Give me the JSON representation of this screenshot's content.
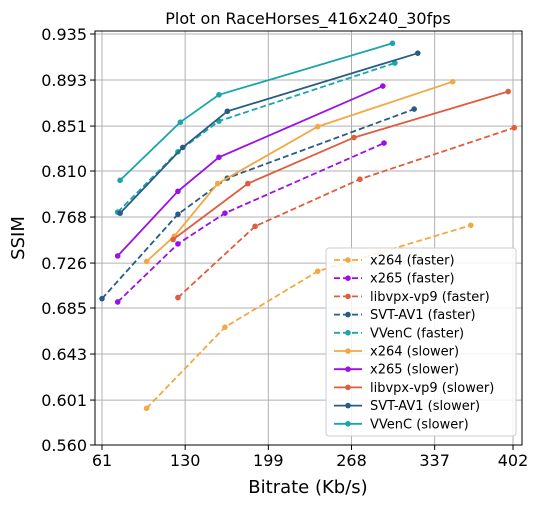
{
  "chart_data": {
    "type": "line",
    "title": "Plot on RaceHorses_416x240_30fps",
    "xlabel": "Bitrate (Kb/s)",
    "ylabel": "SSIM",
    "xlim": [
      56,
      408
    ],
    "ylim": [
      0.56,
      0.94
    ],
    "xticks": [
      61,
      130,
      199,
      268,
      337,
      402
    ],
    "xtick_labels": [
      "61",
      "130",
      "199",
      "268",
      "337",
      "402"
    ],
    "yticks": [
      0.56,
      0.601,
      0.643,
      0.685,
      0.726,
      0.768,
      0.81,
      0.851,
      0.893,
      0.935
    ],
    "ytick_labels": [
      "0.560",
      "0.601",
      "0.643",
      "0.685",
      "0.726",
      "0.768",
      "0.810",
      "0.851",
      "0.893",
      "0.935"
    ],
    "grid": true,
    "legend_position": "lower-right",
    "series": [
      {
        "name": "x264 (faster)",
        "color": "#f4a742",
        "dash": true,
        "x": [
          98,
          163,
          240,
          367
        ],
        "y": [
          0.5935,
          0.6675,
          0.7185,
          0.7605
        ]
      },
      {
        "name": "x265 (faster)",
        "color": "#9b10e8",
        "dash": true,
        "x": [
          74,
          124,
          163,
          295
        ],
        "y": [
          0.6905,
          0.7435,
          0.7715,
          0.8355
        ]
      },
      {
        "name": "libvpx-vp9 (faster)",
        "color": "#e05c3c",
        "dash": true,
        "x": [
          124,
          188,
          275,
          403
        ],
        "y": [
          0.6945,
          0.7595,
          0.8025,
          0.8495
        ]
      },
      {
        "name": "SVT-AV1 (faster)",
        "color": "#265d84",
        "dash": true,
        "x": [
          61,
          124,
          165,
          320
        ],
        "y": [
          0.6935,
          0.7705,
          0.8035,
          0.8665
        ]
      },
      {
        "name": "VVenC (faster)",
        "color": "#19a5aa",
        "dash": true,
        "x": [
          74,
          124,
          158,
          304
        ],
        "y": [
          0.7725,
          0.8275,
          0.8555,
          0.9085
        ]
      },
      {
        "name": "x264 (slower)",
        "color": "#f4a742",
        "dash": false,
        "x": [
          98,
          121,
          157,
          240,
          352
        ],
        "y": [
          0.7275,
          0.7505,
          0.7985,
          0.8505,
          0.8915
        ]
      },
      {
        "name": "x265 (slower)",
        "color": "#9b10e8",
        "dash": false,
        "x": [
          74,
          124,
          158,
          294
        ],
        "y": [
          0.7325,
          0.7915,
          0.8225,
          0.8875
        ]
      },
      {
        "name": "libvpx-vp9 (slower)",
        "color": "#e05c3c",
        "dash": false,
        "x": [
          120,
          182,
          270,
          398
        ],
        "y": [
          0.7475,
          0.7985,
          0.8405,
          0.8825
        ]
      },
      {
        "name": "SVT-AV1 (slower)",
        "color": "#265d84",
        "dash": false,
        "x": [
          76,
          128,
          165,
          323
        ],
        "y": [
          0.7715,
          0.8315,
          0.8645,
          0.9175
        ]
      },
      {
        "name": "VVenC (slower)",
        "color": "#19a5aa",
        "dash": false,
        "x": [
          76,
          126,
          158,
          302
        ],
        "y": [
          0.8015,
          0.8545,
          0.8795,
          0.9265
        ]
      }
    ]
  }
}
